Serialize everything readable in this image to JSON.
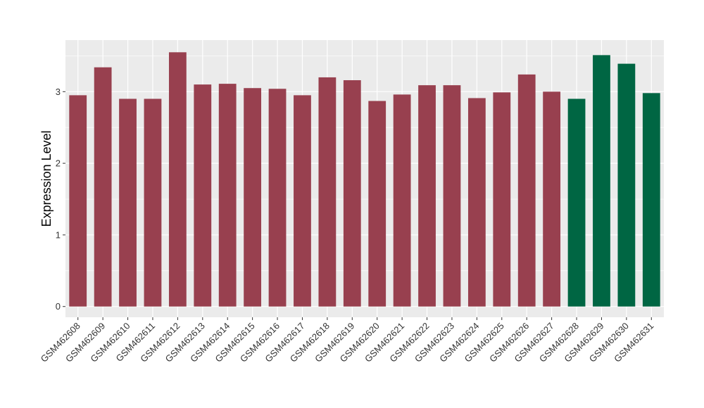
{
  "chart_data": {
    "type": "bar",
    "ylabel": "Expression Level",
    "xlabel": "",
    "ylim": [
      -0.15,
      3.72
    ],
    "yticks": [
      0,
      1,
      2,
      3
    ],
    "ytick_labels": [
      "0",
      "1",
      "2",
      "3"
    ],
    "grid": true,
    "legend": "none",
    "categories": [
      "GSM462608",
      "GSM462609",
      "GSM462610",
      "GSM462611",
      "GSM462612",
      "GSM462613",
      "GSM462614",
      "GSM462615",
      "GSM462616",
      "GSM462617",
      "GSM462618",
      "GSM462619",
      "GSM462620",
      "GSM462621",
      "GSM462622",
      "GSM462623",
      "GSM462624",
      "GSM462625",
      "GSM462626",
      "GSM462627",
      "GSM462628",
      "GSM462629",
      "GSM462630",
      "GSM462631"
    ],
    "values": [
      2.95,
      3.34,
      2.9,
      2.9,
      3.55,
      3.1,
      3.11,
      3.05,
      3.04,
      2.95,
      3.2,
      3.16,
      2.87,
      2.96,
      3.09,
      3.09,
      2.91,
      2.99,
      3.24,
      3.0,
      2.9,
      3.51,
      3.39,
      2.98
    ],
    "groups": [
      "a",
      "a",
      "a",
      "a",
      "a",
      "a",
      "a",
      "a",
      "a",
      "a",
      "a",
      "a",
      "a",
      "a",
      "a",
      "a",
      "a",
      "a",
      "a",
      "a",
      "b",
      "b",
      "b",
      "b"
    ],
    "colors": {
      "a": "#98404f",
      "b": "#006643"
    },
    "panel_background": "#ebebeb",
    "grid_color": "#ffffff"
  }
}
